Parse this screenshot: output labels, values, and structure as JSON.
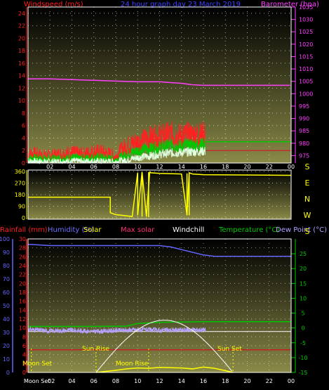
{
  "header": {
    "windspeed_label": "Windspeed (m/s)",
    "title": "24 hour graph day 23 March 2019",
    "barometer_label": "Barometer (hpa)"
  },
  "legend2": {
    "rainfall": "Rainfall (mm)",
    "humidity": "Humidity (%)",
    "solar": "Solar",
    "max_solar": "Max solar",
    "windchill": "Windchill",
    "temperature": "Temperature (°C)",
    "dewpoint": "Dew Point (°C)"
  },
  "events": {
    "moon_set": "Moon Set",
    "sun_rise": "Sun Rise",
    "moon_rise": "Moon Rise",
    "sun_set": "Sun Set",
    "moon_set_axis": "Moon Set"
  },
  "colors": {
    "windspeed": "#ff2020",
    "windgust_avg": "#00c800",
    "windspeed_low": "#e0ffe0",
    "barometer": "#ff40ff",
    "direction": "#ffff00",
    "rainfall": "#ff0000",
    "humidity": "#6464ff",
    "solar": "#ffff00",
    "max_solar": "#ffffff",
    "windchill": "#ffffff",
    "temperature": "#00c800",
    "dewpoint": "#b4a0ff",
    "grid": "#ffffff",
    "panel_top": "#000000",
    "panel_bottom": "#8c8c46"
  },
  "chart_data": [
    {
      "type": "line",
      "title": "24 hour graph day 23 March 2019",
      "x_ticks": [
        "02",
        "04",
        "06",
        "08",
        "10",
        "12",
        "14",
        "16",
        "18",
        "20",
        "22",
        "00"
      ],
      "xlim": [
        0,
        24
      ],
      "left_axis": {
        "label": "Windspeed (m/s)",
        "ylim": [
          0,
          25
        ],
        "ticks": [
          0,
          2,
          4,
          6,
          8,
          10,
          12,
          14,
          16,
          18,
          20,
          22,
          24
        ]
      },
      "right_axis": {
        "label": "Barometer (hpa)",
        "ylim": [
          972,
          1035
        ],
        "ticks": [
          975,
          980,
          985,
          990,
          995,
          1000,
          1005,
          1010,
          1015,
          1020,
          1025,
          1030,
          1035
        ]
      },
      "series": [
        {
          "name": "Barometer (hpa)",
          "axis": "right",
          "x": [
            0,
            2,
            4,
            6,
            8,
            10,
            12,
            13,
            14,
            15,
            16,
            17,
            18,
            20,
            22,
            23.9
          ],
          "y": [
            1006,
            1006,
            1005.7,
            1005.4,
            1005.1,
            1004.8,
            1004.8,
            1004.5,
            1004.2,
            1003.6,
            1003.4,
            1003.4,
            1003.4,
            1003.4,
            1003.4,
            1003.4
          ]
        },
        {
          "name": "Windspeed (m/s)",
          "axis": "left",
          "x": [
            0,
            1,
            2,
            3,
            4,
            5,
            6,
            7,
            8,
            8.5,
            9,
            10,
            11,
            12,
            13,
            14,
            15,
            16.2
          ],
          "y": [
            1.5,
            1.2,
            1.0,
            1.4,
            1.6,
            1.3,
            1.8,
            1.6,
            1.0,
            2.0,
            2.8,
            3.4,
            4.0,
            4.3,
            4.6,
            4.4,
            4.5,
            4.6
          ]
        },
        {
          "x": [
            0,
            1,
            2,
            3,
            4,
            5,
            6,
            7,
            8,
            9,
            10,
            11,
            12,
            13,
            14,
            15,
            16.2
          ],
          "y": [
            0.8,
            0.7,
            0.6,
            0.7,
            0.8,
            0.7,
            0.9,
            0.8,
            0.5,
            1.4,
            2.0,
            2.3,
            2.5,
            2.8,
            2.7,
            2.9,
            3.0
          ]
        },
        {
          "x": [
            0,
            2,
            4,
            6,
            8,
            9,
            10,
            11,
            12,
            13,
            14,
            15,
            16.2
          ],
          "y": [
            0.3,
            0.2,
            0.3,
            0.3,
            0.2,
            0.5,
            0.9,
            1.1,
            1.4,
            1.6,
            1.7,
            1.8,
            1.9
          ]
        },
        {
          "x": [
            16.2,
            24
          ],
          "y": [
            3.4,
            3.4
          ]
        },
        {
          "x": [
            16.2,
            24
          ],
          "y": [
            2.0,
            2.0
          ]
        }
      ]
    },
    {
      "type": "scatter",
      "y_ticks": [
        0,
        90,
        180,
        270,
        360
      ],
      "ylim": [
        0,
        360
      ],
      "compass_labels": [
        "S",
        "E",
        "N",
        "W",
        "S"
      ],
      "series": [
        {
          "x": [
            0,
            7.5,
            7.5,
            8.0,
            9.5,
            10.0,
            10.0,
            10.4,
            10.8,
            11.1,
            11.2,
            12,
            14,
            14.5,
            14.7,
            15,
            16,
            24
          ],
          "y": [
            160,
            160,
            40,
            25,
            10,
            350,
            20,
            355,
            10,
            355,
            350,
            345,
            340,
            20,
            350,
            340,
            335,
            330
          ]
        }
      ]
    },
    {
      "type": "line",
      "left_axis_rain": {
        "label": "Rainfall (mm)",
        "ylim": [
          0,
          30
        ],
        "ticks": [
          0,
          2,
          4,
          6,
          8,
          10,
          12,
          14,
          16,
          18,
          20,
          22,
          24,
          26,
          28,
          30
        ]
      },
      "left_axis_humidity": {
        "label": "Humidity (%)",
        "ylim": [
          0,
          100
        ],
        "ticks": [
          0,
          10,
          20,
          30,
          40,
          50,
          60,
          70,
          80,
          90,
          100
        ]
      },
      "right_axis": {
        "label": "Temperature (°C)",
        "ylim": [
          -15,
          30
        ],
        "ticks": [
          -15,
          -10,
          -5,
          0,
          5,
          10,
          15,
          20,
          25
        ]
      },
      "series": [
        {
          "name": "Humidity (%)",
          "axis": "humidity",
          "x": [
            0,
            2,
            4,
            6,
            8,
            10,
            12,
            13,
            14,
            15,
            16,
            17,
            18,
            20,
            22,
            24
          ],
          "y": [
            96,
            95,
            95,
            95,
            95,
            95,
            95,
            94,
            92,
            90,
            88,
            87,
            87,
            87,
            87,
            87
          ]
        },
        {
          "name": "Temperature (°C)",
          "axis": "temp",
          "x": [
            0,
            6,
            9,
            10,
            12,
            14,
            16,
            18,
            24
          ],
          "y": [
            0.5,
            0.5,
            0.6,
            1.5,
            1.9,
            2.0,
            2.1,
            2.1,
            2.1
          ]
        },
        {
          "name": "Windchill",
          "axis": "temp",
          "x": [
            0,
            16.2,
            24
          ],
          "y": [
            -1.2,
            -1.2,
            -1.2
          ]
        },
        {
          "name": "Dew Point (°C)",
          "axis": "temp",
          "x": [
            0,
            2,
            4,
            6,
            8,
            10,
            12,
            14,
            16.2
          ],
          "y": [
            -0.5,
            -1.0,
            -0.8,
            -1.2,
            -0.9,
            -0.6,
            -0.8,
            -0.7,
            -0.6
          ]
        },
        {
          "name": "Rainfall (mm)",
          "axis": "rain",
          "x": [
            0,
            24
          ],
          "y": [
            5.1,
            5.1
          ]
        },
        {
          "name": "Max solar",
          "axis": "temp",
          "x": [
            6.2,
            8,
            10,
            12,
            13,
            14,
            16,
            18,
            18.7
          ],
          "y": [
            -15,
            -9,
            -3,
            1.8,
            2.6,
            1.8,
            -3,
            -9,
            -15
          ]
        },
        {
          "name": "Solar",
          "axis": "temp",
          "x": [
            6.2,
            8,
            9,
            10,
            11,
            12,
            13,
            14,
            15,
            16,
            17,
            18,
            18.7
          ],
          "y": [
            -15,
            -14.3,
            -13.8,
            -13.5,
            -13.6,
            -13.3,
            -13.4,
            -13.5,
            -13.8,
            -13.2,
            -13.6,
            -14.4,
            -15
          ]
        }
      ],
      "events": [
        {
          "label": "Moon Set",
          "x": 0.3
        },
        {
          "label": "Sun Rise",
          "x": 6.2
        },
        {
          "label": "Moon Rise",
          "x": 11.0
        },
        {
          "label": "Sun Set",
          "x": 18.7
        }
      ]
    }
  ]
}
